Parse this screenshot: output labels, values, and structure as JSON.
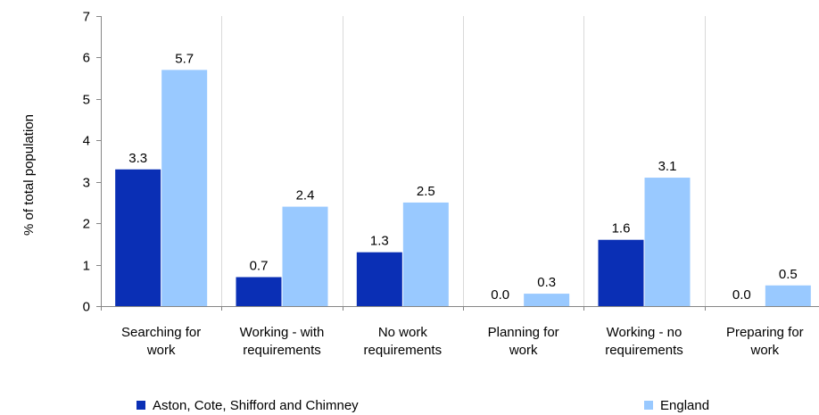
{
  "chart_data": {
    "type": "bar",
    "title": "",
    "xlabel": "",
    "ylabel": "% of total population",
    "ylim": [
      0,
      7
    ],
    "yticks": [
      0,
      1,
      2,
      3,
      4,
      5,
      6,
      7
    ],
    "grid": "vertical lines between categories",
    "legend_position": "bottom",
    "categories": [
      [
        "Searching for",
        "work"
      ],
      [
        "Working - with",
        "requirements"
      ],
      [
        "No work",
        "requirements"
      ],
      [
        "Planning for",
        "work"
      ],
      [
        "Working - no",
        "requirements"
      ],
      [
        "Preparing for",
        "work"
      ]
    ],
    "series": [
      {
        "name": "Aston, Cote, Shifford and Chimney",
        "color": "#0a2fb5",
        "values": [
          3.3,
          0.7,
          1.3,
          0.0,
          1.6,
          0.0
        ],
        "labels": [
          "3.3",
          "0.7",
          "1.3",
          "0.0",
          "1.6",
          "0.0"
        ]
      },
      {
        "name": "England",
        "color": "#99c9ff",
        "values": [
          5.7,
          2.4,
          2.5,
          0.3,
          3.1,
          0.5
        ],
        "labels": [
          "5.7",
          "2.4",
          "2.5",
          "0.3",
          "3.1",
          "0.5"
        ]
      }
    ]
  }
}
